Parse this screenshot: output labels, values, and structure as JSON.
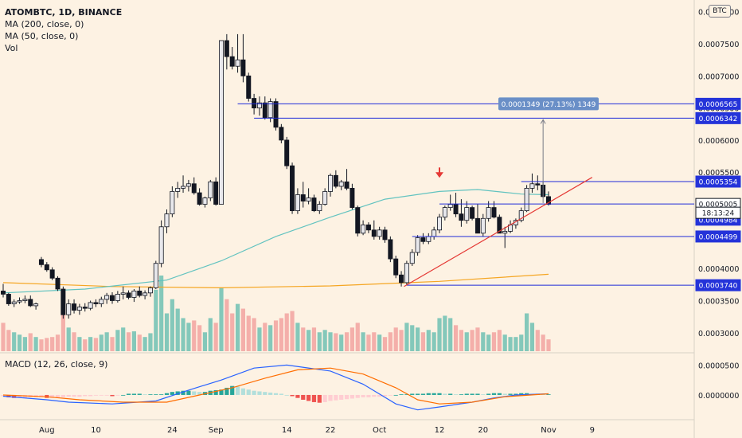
{
  "legend": {
    "symbol": "ATOMBTC, 1D, BINANCE",
    "ma200": "MA (200, close, 0)",
    "ma50": "MA (50, close, 0)",
    "vol": "Vol",
    "macd": "MACD (12, 26, close, 9)"
  },
  "currency_badge": "BTC",
  "measure_label": "0.0001349 (27.13%) 1349",
  "countdown": "18:13:24",
  "colors": {
    "background": "#fdf2e3",
    "up": "#e8e8ec",
    "down": "#131722",
    "ma50": "#62c3c0",
    "ma200": "#f5a623",
    "vol_up": "#6fc1b3",
    "vol_down": "#f2a3a0",
    "level_line": "#1e2bd8",
    "trendline": "#e53935",
    "label_blue": "#2433d9",
    "measure_box": "#6a8fc7",
    "macd_line": "#2962ff",
    "signal_line": "#ff6d00"
  },
  "chart_data": [
    {
      "type": "candlestick",
      "title": "ATOMBTC, 1D, BINANCE",
      "y_axis_ticks": [
        "0.0008000",
        "0.0007500",
        "0.0007000",
        "0.0006500",
        "0.0006000",
        "0.0005500",
        "0.0005000",
        "0.0004500",
        "0.0004000",
        "0.0003500",
        "0.0003000"
      ],
      "ylim": [
        0.00027,
        0.000812
      ],
      "x_axis_ticks": [
        "Aug",
        "10",
        "24",
        "Sep",
        "14",
        "22",
        "Oct",
        "12",
        "20",
        "Nov",
        "9"
      ],
      "ohlcv": [
        [
          0.000365,
          0.000376,
          0.000355,
          0.00036,
          60
        ],
        [
          0.00036,
          0.000362,
          0.000342,
          0.000345,
          45
        ],
        [
          0.000345,
          0.000352,
          0.00034,
          0.000348,
          40
        ],
        [
          0.000348,
          0.000355,
          0.000345,
          0.00035,
          35
        ],
        [
          0.00035,
          0.000358,
          0.000346,
          0.000352,
          30
        ],
        [
          0.000352,
          0.000358,
          0.00034,
          0.000342,
          38
        ],
        [
          0.000342,
          0.000347,
          0.000336,
          0.000345,
          30
        ],
        [
          0.000414,
          0.000418,
          0.000402,
          0.000406,
          25
        ],
        [
          0.000406,
          0.00041,
          0.000395,
          0.000398,
          28
        ],
        [
          0.000398,
          0.000402,
          0.000382,
          0.000385,
          30
        ],
        [
          0.000385,
          0.000388,
          0.000365,
          0.000368,
          35
        ],
        [
          0.000368,
          0.000372,
          0.000322,
          0.000328,
          95
        ],
        [
          0.000328,
          0.000352,
          0.000322,
          0.000345,
          50
        ],
        [
          0.000345,
          0.000352,
          0.00033,
          0.000335,
          40
        ],
        [
          0.000335,
          0.000345,
          0.000328,
          0.00034,
          30
        ],
        [
          0.00034,
          0.000346,
          0.000333,
          0.000338,
          25
        ],
        [
          0.000338,
          0.00035,
          0.000335,
          0.000347,
          30
        ],
        [
          0.000347,
          0.000352,
          0.00034,
          0.000345,
          28
        ],
        [
          0.000345,
          0.000356,
          0.00034,
          0.000352,
          35
        ],
        [
          0.000352,
          0.000362,
          0.000345,
          0.000358,
          40
        ],
        [
          0.000358,
          0.000363,
          0.000345,
          0.00035,
          30
        ],
        [
          0.00035,
          0.000365,
          0.000347,
          0.00036,
          45
        ],
        [
          0.00036,
          0.000372,
          0.000352,
          0.000362,
          50
        ],
        [
          0.000362,
          0.000366,
          0.000352,
          0.000355,
          40
        ],
        [
          0.000355,
          0.000368,
          0.000348,
          0.000365,
          42
        ],
        [
          0.000365,
          0.000372,
          0.000355,
          0.000358,
          35
        ],
        [
          0.000358,
          0.000366,
          0.000352,
          0.000362,
          30
        ],
        [
          0.000362,
          0.000372,
          0.000356,
          0.00037,
          38
        ],
        [
          0.00037,
          0.000412,
          0.000368,
          0.000408,
          130
        ],
        [
          0.000408,
          0.000475,
          0.000402,
          0.000465,
          160
        ],
        [
          0.000465,
          0.000492,
          0.000455,
          0.000485,
          80
        ],
        [
          0.000485,
          0.000528,
          0.00048,
          0.00052,
          110
        ],
        [
          0.00052,
          0.000535,
          0.00051,
          0.000525,
          90
        ],
        [
          0.000525,
          0.000545,
          0.000518,
          0.000528,
          70
        ],
        [
          0.000528,
          0.000538,
          0.00052,
          0.000532,
          60
        ],
        [
          0.000532,
          0.000542,
          0.000515,
          0.000518,
          65
        ],
        [
          0.000518,
          0.000525,
          0.000498,
          0.0005,
          55
        ],
        [
          0.0005,
          0.000512,
          0.000495,
          0.00051,
          40
        ],
        [
          0.00051,
          0.000538,
          0.000505,
          0.000535,
          70
        ],
        [
          0.000535,
          0.000542,
          0.000498,
          0.0005,
          60
        ],
        [
          0.0005,
          0.000755,
          0.000545,
          0.000755,
          135
        ],
        [
          0.000755,
          0.000765,
          0.00071,
          0.00073,
          110
        ],
        [
          0.00073,
          0.000745,
          0.00071,
          0.000715,
          80
        ],
        [
          0.000715,
          0.000765,
          0.000705,
          0.000725,
          100
        ],
        [
          0.000725,
          0.000765,
          0.00069,
          0.0007,
          90
        ],
        [
          0.0007,
          0.000705,
          0.00066,
          0.000665,
          75
        ],
        [
          0.000665,
          0.000672,
          0.00064,
          0.00065,
          70
        ],
        [
          0.00065,
          0.000668,
          0.000638,
          0.000658,
          50
        ],
        [
          0.000658,
          0.000668,
          0.000632,
          0.000635,
          60
        ],
        [
          0.000635,
          0.000665,
          0.000628,
          0.00066,
          55
        ],
        [
          0.00066,
          0.000665,
          0.000615,
          0.00062,
          65
        ],
        [
          0.00062,
          0.000625,
          0.000595,
          0.0006,
          70
        ],
        [
          0.0006,
          0.000605,
          0.000555,
          0.00056,
          80
        ],
        [
          0.00056,
          0.000565,
          0.000485,
          0.00049,
          85
        ],
        [
          0.00049,
          0.000525,
          0.000485,
          0.000515,
          60
        ],
        [
          0.000515,
          0.000535,
          0.000495,
          0.000505,
          50
        ],
        [
          0.000505,
          0.000525,
          0.0005,
          0.00051,
          45
        ],
        [
          0.00051,
          0.000515,
          0.000488,
          0.00049,
          50
        ],
        [
          0.00049,
          0.000505,
          0.000485,
          0.0005,
          40
        ],
        [
          0.0005,
          0.000525,
          0.000498,
          0.00052,
          45
        ],
        [
          0.00052,
          0.000548,
          0.000512,
          0.000545,
          40
        ],
        [
          0.000545,
          0.000553,
          0.000525,
          0.000528,
          38
        ],
        [
          0.000528,
          0.000538,
          0.000522,
          0.000535,
          35
        ],
        [
          0.000535,
          0.000555,
          0.000522,
          0.000525,
          40
        ],
        [
          0.000525,
          0.000532,
          0.000492,
          0.000495,
          50
        ],
        [
          0.000495,
          0.000498,
          0.00045,
          0.000455,
          60
        ],
        [
          0.000455,
          0.000475,
          0.000452,
          0.000468,
          40
        ],
        [
          0.000468,
          0.000472,
          0.000455,
          0.00046,
          35
        ],
        [
          0.00046,
          0.000475,
          0.000445,
          0.00045,
          40
        ],
        [
          0.00045,
          0.000465,
          0.000445,
          0.00046,
          35
        ],
        [
          0.00046,
          0.000465,
          0.00044,
          0.000445,
          30
        ],
        [
          0.000445,
          0.00045,
          0.00041,
          0.000415,
          40
        ],
        [
          0.000415,
          0.00042,
          0.000385,
          0.00039,
          50
        ],
        [
          0.00039,
          0.000396,
          0.000372,
          0.000378,
          45
        ],
        [
          0.000378,
          0.000412,
          0.000374,
          0.000408,
          60
        ],
        [
          0.000408,
          0.00043,
          0.000404,
          0.000425,
          55
        ],
        [
          0.000425,
          0.000452,
          0.00042,
          0.000448,
          50
        ],
        [
          0.000448,
          0.000455,
          0.000438,
          0.000442,
          40
        ],
        [
          0.000442,
          0.000455,
          0.000438,
          0.00045,
          45
        ],
        [
          0.00045,
          0.000465,
          0.000445,
          0.00046,
          40
        ],
        [
          0.00046,
          0.000485,
          0.000455,
          0.00048,
          70
        ],
        [
          0.00048,
          0.000498,
          0.000475,
          0.000495,
          75
        ],
        [
          0.000495,
          0.000515,
          0.00049,
          0.0005,
          70
        ],
        [
          0.0005,
          0.000518,
          0.00048,
          0.000485,
          55
        ],
        [
          0.000485,
          0.000508,
          0.000465,
          0.000475,
          45
        ],
        [
          0.000475,
          0.000505,
          0.00047,
          0.000495,
          40
        ],
        [
          0.000495,
          0.000498,
          0.000475,
          0.000478,
          45
        ],
        [
          0.000478,
          0.0005,
          0.000455,
          0.000455,
          50
        ],
        [
          0.000455,
          0.000485,
          0.00045,
          0.000478,
          40
        ],
        [
          0.000478,
          0.000505,
          0.000473,
          0.000495,
          35
        ],
        [
          0.000495,
          0.000505,
          0.000478,
          0.00048,
          40
        ],
        [
          0.00048,
          0.000484,
          0.000455,
          0.000455,
          45
        ],
        [
          0.000455,
          0.000465,
          0.000432,
          0.000458,
          35
        ],
        [
          0.000458,
          0.000475,
          0.000455,
          0.000468,
          30
        ],
        [
          0.000468,
          0.000478,
          0.000462,
          0.000475,
          30
        ],
        [
          0.000475,
          0.000495,
          0.000472,
          0.00049,
          35
        ],
        [
          0.00049,
          0.00053,
          0.000488,
          0.000525,
          80
        ],
        [
          0.000525,
          0.000548,
          0.000518,
          0.000532,
          60
        ],
        [
          0.000532,
          0.000545,
          0.000522,
          0.00053,
          45
        ],
        [
          0.00053,
          0.000535,
          0.00051,
          0.000512,
          35
        ],
        [
          0.000512,
          0.00052,
          0.000498,
          0.0005,
          25
        ]
      ],
      "first_bar_date": "2020-07-24",
      "ma50": [
        [
          0,
          0.000362
        ],
        [
          15,
          0.000368
        ],
        [
          30,
          0.000382
        ],
        [
          40,
          0.000412
        ],
        [
          50,
          0.00045
        ],
        [
          60,
          0.00048
        ],
        [
          70,
          0.000508
        ],
        [
          80,
          0.00052
        ],
        [
          87,
          0.000523
        ],
        [
          95,
          0.000516
        ],
        [
          100,
          0.000515
        ]
      ],
      "ma200": [
        [
          0,
          0.000378
        ],
        [
          20,
          0.000372
        ],
        [
          40,
          0.00037
        ],
        [
          60,
          0.000373
        ],
        [
          80,
          0.00038
        ],
        [
          100,
          0.000391
        ]
      ],
      "levels": [
        "0.0006565",
        "0.0006342",
        "0.0005354",
        "0.0005005",
        "0.0004984",
        "0.0004499",
        "0.0003740"
      ],
      "last_price": "0.0005005",
      "measure_value": 0.0001349,
      "measure_percent": 27.13,
      "measure_text": "0.0001349 (27.13%) 1349"
    },
    {
      "type": "line",
      "title": "MACD (12, 26, close, 9)",
      "y_axis_ticks": [
        "0.0000500",
        "0.0000000"
      ],
      "ylim": [
        -4e-05,
        6.65e-05
      ],
      "series": [
        {
          "name": "MACD",
          "color": "#2962ff",
          "points": [
            [
              0,
              -2e-06
            ],
            [
              8,
              -8e-06
            ],
            [
              12,
              -1.2e-05
            ],
            [
              20,
              -1.5e-05
            ],
            [
              28,
              -1e-05
            ],
            [
              34,
              8e-06
            ],
            [
              40,
              2.5e-05
            ],
            [
              46,
              4.5e-05
            ],
            [
              52,
              5e-05
            ],
            [
              60,
              4e-05
            ],
            [
              66,
              1.8e-05
            ],
            [
              72,
              -1.5e-05
            ],
            [
              76,
              -2.5e-05
            ],
            [
              80,
              -2e-05
            ],
            [
              86,
              -1.2e-05
            ],
            [
              90,
              -5e-06
            ],
            [
              94,
              0
            ],
            [
              100,
              2e-06
            ]
          ]
        },
        {
          "name": "Signal",
          "color": "#ff6d00",
          "points": [
            [
              0,
              0
            ],
            [
              8,
              -3e-06
            ],
            [
              14,
              -8e-06
            ],
            [
              22,
              -1.2e-05
            ],
            [
              30,
              -1.2e-05
            ],
            [
              36,
              0
            ],
            [
              42,
              1.2e-05
            ],
            [
              48,
              2.8e-05
            ],
            [
              54,
              4.2e-05
            ],
            [
              60,
              4.5e-05
            ],
            [
              66,
              3.5e-05
            ],
            [
              72,
              1.2e-05
            ],
            [
              76,
              -8e-06
            ],
            [
              80,
              -1.5e-05
            ],
            [
              86,
              -1.2e-05
            ],
            [
              92,
              -3e-06
            ],
            [
              100,
              2e-06
            ]
          ]
        }
      ],
      "histogram": [
        -2e-06,
        -4e-06,
        -5e-06,
        -5e-06,
        -5e-06,
        -4e-06,
        -4e-06,
        -4e-06,
        -5e-06,
        -5e-06,
        -5e-06,
        -4e-06,
        -3e-06,
        -3e-06,
        -3e-06,
        -2e-06,
        -2e-06,
        -1e-06,
        -1e-06,
        -1e-06,
        -2e-06,
        -1e-06,
        0,
        2e-06,
        2e-06,
        2e-06,
        1e-06,
        1e-06,
        1e-06,
        1e-06,
        3e-06,
        5e-06,
        6e-06,
        7e-06,
        7e-06,
        6e-06,
        5e-06,
        5e-06,
        7e-06,
        8e-06,
        9e-06,
        1.2e-05,
        1.5e-05,
        1.4e-05,
        1.1e-05,
        9e-06,
        7e-06,
        6e-06,
        5e-06,
        4e-06,
        3e-06,
        2e-06,
        0,
        -2e-06,
        -5e-06,
        -8e-06,
        -1e-05,
        -1.2e-05,
        -1.3e-05,
        -1.2e-05,
        -1e-05,
        -9e-06,
        -8e-06,
        -7e-06,
        -6e-06,
        -5e-06,
        -4e-06,
        -4e-06,
        -3e-06,
        -3e-06,
        -2e-06,
        -1e-06,
        0,
        1e-06,
        1e-06,
        2e-06,
        2e-06,
        2e-06,
        3e-06,
        3e-06,
        3e-06,
        2e-06,
        2e-06,
        1e-06,
        1e-06,
        2e-06,
        2e-06,
        2e-06,
        1e-06,
        2e-06,
        3e-06,
        3e-06,
        2e-06,
        2e-06,
        2e-06,
        3e-06,
        3e-06,
        2e-06,
        2e-06,
        1e-06,
        1e-06
      ]
    }
  ]
}
